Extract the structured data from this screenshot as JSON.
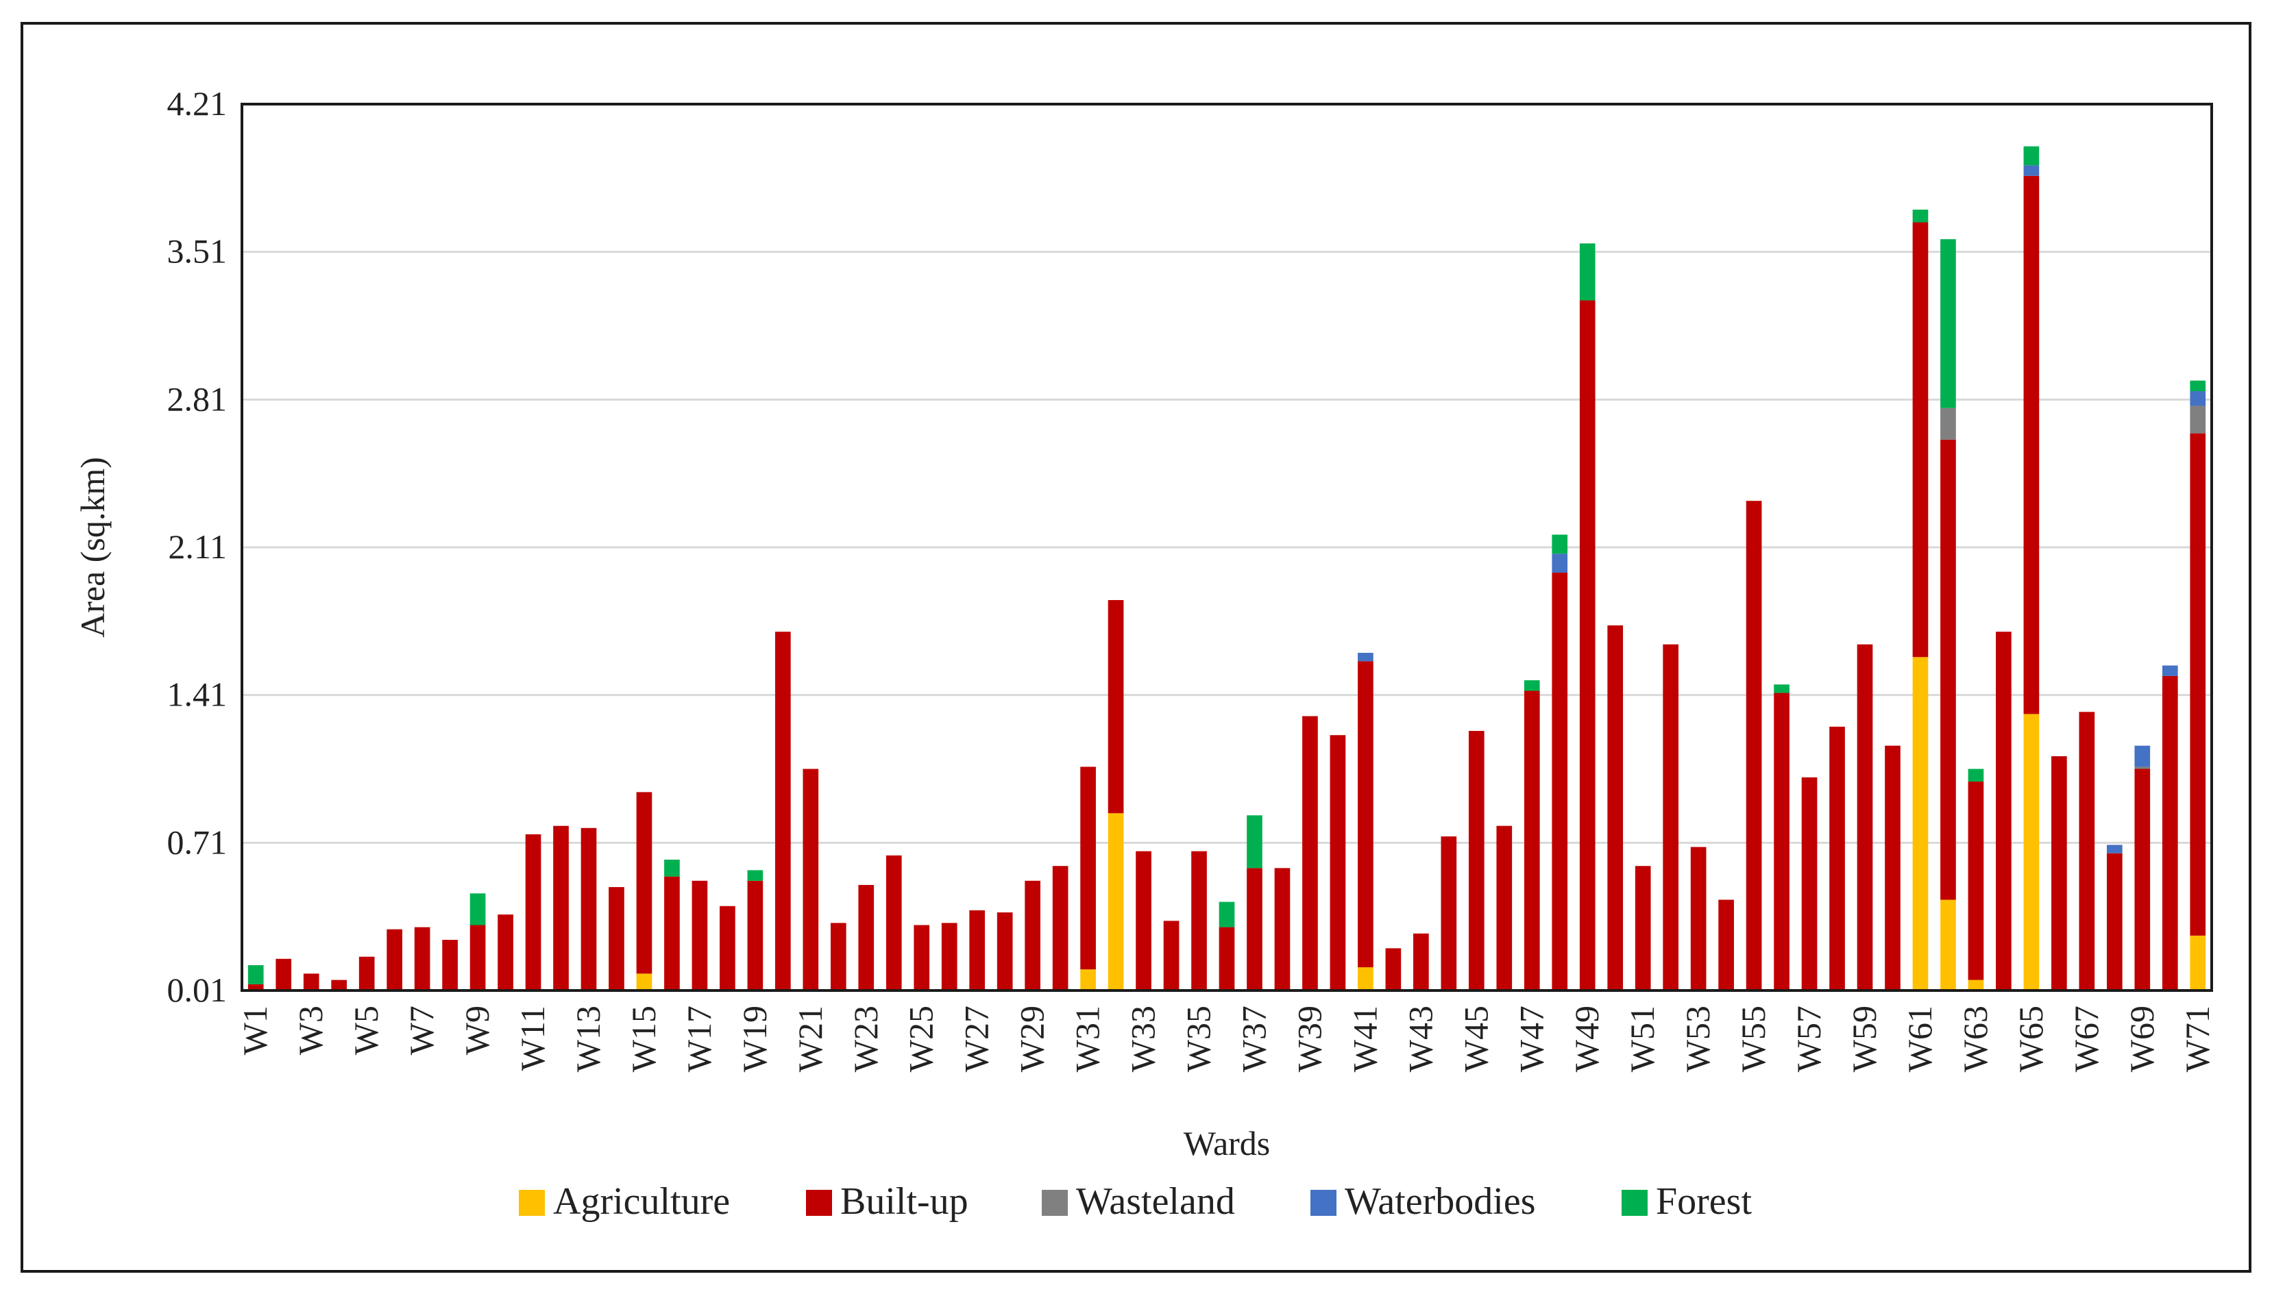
{
  "chart_data": {
    "type": "bar",
    "stacked": true,
    "title": "",
    "xlabel": "Wards",
    "ylabel": "Area (sq.km)",
    "ylim": [
      0.01,
      4.21
    ],
    "yticks": [
      "0.01",
      "0.71",
      "1.41",
      "2.11",
      "2.81",
      "3.51",
      "4.21"
    ],
    "ytick_values": [
      0.01,
      0.71,
      1.41,
      2.11,
      2.81,
      3.51,
      4.21
    ],
    "grid": true,
    "legend_position": "bottom",
    "categories": [
      "W1",
      "W2",
      "W3",
      "W4",
      "W5",
      "W6",
      "W7",
      "W8",
      "W9",
      "W10",
      "W11",
      "W12",
      "W13",
      "W14",
      "W15",
      "W16",
      "W17",
      "W18",
      "W19",
      "W20",
      "W21",
      "W22",
      "W23",
      "W24",
      "W25",
      "W26",
      "W27",
      "W28",
      "W29",
      "W30",
      "W31",
      "W32",
      "W33",
      "W34",
      "W35",
      "W36",
      "W37",
      "W38",
      "W39",
      "W40",
      "W41",
      "W42",
      "W43",
      "W44",
      "W45",
      "W46",
      "W47",
      "W48",
      "W49",
      "W50",
      "W51",
      "W52",
      "W53",
      "W54",
      "W55",
      "W56",
      "W57",
      "W58",
      "W59",
      "W60",
      "W61",
      "W62",
      "W63",
      "W64",
      "W65",
      "W66",
      "W67",
      "W68",
      "W69",
      "W70",
      "W71"
    ],
    "tick_labels": [
      "W1",
      "W3",
      "W5",
      "W7",
      "W9",
      "W11",
      "W13",
      "W15",
      "W17",
      "W19",
      "W21",
      "W23",
      "W25",
      "W27",
      "W29",
      "W31",
      "W33",
      "W35",
      "W37",
      "W39",
      "W41",
      "W43",
      "W45",
      "W47",
      "W49",
      "W51",
      "W53",
      "W55",
      "W57",
      "W59",
      "W61",
      "W63",
      "W65",
      "W67",
      "W69",
      "W71"
    ],
    "series": [
      {
        "name": "Agriculture",
        "color": "#FFC000",
        "values": [
          0,
          0,
          0,
          0,
          0,
          0,
          0,
          0,
          0,
          0,
          0,
          0,
          0,
          0,
          0.08,
          0,
          0,
          0,
          0,
          0,
          0,
          0,
          0,
          0,
          0,
          0,
          0,
          0,
          0,
          0,
          0.1,
          0.84,
          0,
          0,
          0,
          0,
          0,
          0,
          0,
          0,
          0.11,
          0,
          0,
          0,
          0,
          0,
          0,
          0,
          0,
          0,
          0,
          0,
          0,
          0,
          0,
          0,
          0,
          0,
          0,
          0,
          1.58,
          0.43,
          0.05,
          0,
          1.31,
          0,
          0,
          0,
          0,
          0,
          0.26
        ]
      },
      {
        "name": "Built-up",
        "color": "#C00000",
        "values": [
          0.03,
          0.15,
          0.08,
          0.05,
          0.16,
          0.29,
          0.3,
          0.24,
          0.31,
          0.36,
          0.74,
          0.78,
          0.77,
          0.49,
          0.86,
          0.54,
          0.52,
          0.4,
          0.52,
          1.7,
          1.05,
          0.32,
          0.5,
          0.64,
          0.31,
          0.32,
          0.38,
          0.37,
          0.52,
          0.59,
          0.96,
          1.01,
          0.66,
          0.33,
          0.66,
          0.3,
          0.58,
          0.58,
          1.3,
          1.21,
          1.45,
          0.2,
          0.27,
          0.73,
          1.23,
          0.78,
          1.42,
          1.98,
          3.27,
          1.73,
          0.59,
          1.64,
          0.68,
          0.43,
          2.32,
          1.41,
          1.01,
          1.25,
          1.64,
          1.16,
          2.06,
          2.18,
          0.94,
          1.7,
          2.55,
          1.11,
          1.32,
          0.65,
          1.05,
          1.49,
          2.38
        ]
      },
      {
        "name": "Wasteland",
        "color": "#808080",
        "values": [
          0,
          0,
          0,
          0,
          0,
          0,
          0,
          0,
          0,
          0,
          0,
          0,
          0,
          0,
          0,
          0,
          0,
          0,
          0,
          0,
          0,
          0,
          0,
          0,
          0,
          0,
          0,
          0,
          0,
          0,
          0,
          0,
          0,
          0,
          0,
          0,
          0,
          0,
          0,
          0,
          0,
          0,
          0,
          0,
          0,
          0,
          0,
          0,
          0,
          0,
          0,
          0,
          0,
          0,
          0,
          0,
          0,
          0,
          0,
          0,
          0,
          0.15,
          0,
          0,
          0,
          0,
          0,
          0,
          0.01,
          0,
          0.13
        ]
      },
      {
        "name": "Waterbodies",
        "color": "#4472C4",
        "values": [
          0,
          0,
          0,
          0,
          0,
          0,
          0,
          0,
          0,
          0,
          0,
          0,
          0,
          0,
          0,
          0,
          0,
          0,
          0,
          0,
          0,
          0,
          0,
          0,
          0,
          0,
          0,
          0,
          0,
          0,
          0,
          0,
          0,
          0,
          0,
          0,
          0,
          0,
          0,
          0,
          0.04,
          0,
          0,
          0,
          0,
          0,
          0,
          0.09,
          0,
          0,
          0,
          0,
          0,
          0,
          0,
          0,
          0,
          0,
          0,
          0,
          0,
          0,
          0,
          0,
          0.05,
          0,
          0,
          0.04,
          0.1,
          0.05,
          0.07
        ]
      },
      {
        "name": "Forest",
        "color": "#00B050",
        "values": [
          0.09,
          0,
          0,
          0,
          0,
          0,
          0,
          0,
          0.15,
          0,
          0,
          0,
          0,
          0,
          0,
          0.08,
          0,
          0,
          0.05,
          0,
          0,
          0,
          0,
          0,
          0,
          0,
          0,
          0,
          0,
          0,
          0,
          0,
          0,
          0,
          0,
          0.12,
          0.25,
          0,
          0,
          0,
          0,
          0,
          0,
          0,
          0,
          0,
          0.05,
          0.09,
          0.27,
          0,
          0,
          0,
          0,
          0,
          0,
          0.04,
          0,
          0,
          0,
          0,
          0.06,
          0.8,
          0.06,
          0,
          0.09,
          0,
          0,
          0,
          0,
          0,
          0.05
        ]
      }
    ]
  }
}
